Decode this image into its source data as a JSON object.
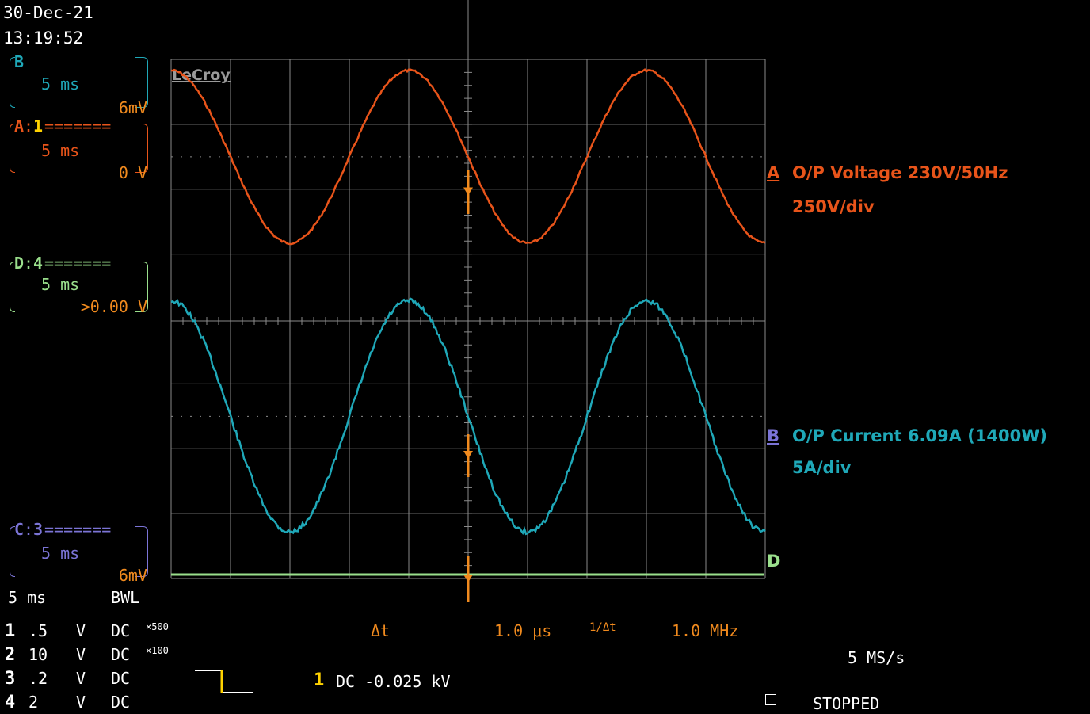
{
  "header": {
    "date": "30-Dec-21",
    "time": "13:19:52"
  },
  "channels": {
    "b": {
      "tag": "B",
      "time": "5 ms",
      "scale": "6mV"
    },
    "a": {
      "tag": "A",
      "src": "1",
      "dash": "=======",
      "time": "5 ms",
      "scale": "0 V"
    },
    "d": {
      "tag": "D",
      "src": "4",
      "dash": "=======",
      "time": "5 ms",
      "scale": ">0.00 V"
    },
    "c": {
      "tag": "C",
      "src": "3",
      "dash": "=======",
      "time": "5 ms",
      "scale": "6mV"
    }
  },
  "timebase": {
    "value": "5 ms",
    "bwl": "BWL"
  },
  "vertical": [
    {
      "ch": "1",
      "volts": ".5",
      "unit": "V",
      "coupling": "DC",
      "probe": "×500"
    },
    {
      "ch": "2",
      "volts": "10",
      "unit": "V",
      "coupling": "DC",
      "probe": "×100"
    },
    {
      "ch": "3",
      "volts": ".2",
      "unit": "V",
      "coupling": "DC",
      "probe": ""
    },
    {
      "ch": "4",
      "volts": "2",
      "unit": "V",
      "coupling": "DC",
      "probe": ""
    }
  ],
  "trigger": {
    "ch": "1",
    "level": "DC -0.025 kV"
  },
  "measure": {
    "dt_label": "Δt",
    "dt_value": "1.0 μs",
    "inv_label": "1/Δt",
    "inv_value": "1.0 MHz"
  },
  "status": {
    "rate": "5 MS/s",
    "state": "STOPPED"
  },
  "screen": {
    "logo": "LeCroy"
  },
  "trace_labels": {
    "a": {
      "marker": "A",
      "title": "O/P Voltage 230V/50Hz",
      "scale": "250V/div"
    },
    "b": {
      "marker": "B",
      "title": "O/P Current 6.09A (1400W)",
      "scale": "5A/div"
    },
    "d": {
      "marker": "D"
    }
  },
  "colors": {
    "voltage": "#e8541a",
    "current": "#1fa8b8",
    "ch4": "#9adf8c",
    "cursor": "#f08a1e",
    "grid": "#8a8a8a",
    "trigger": "#ffd200"
  },
  "waveform_data": {
    "timebase_ms_per_div": 5,
    "voltage_waveform": {
      "frequency_hz": 50,
      "amplitude_div": 1.33
    },
    "current_waveform": {
      "frequency_hz": 50,
      "amplitude_div": 1.78
    }
  }
}
